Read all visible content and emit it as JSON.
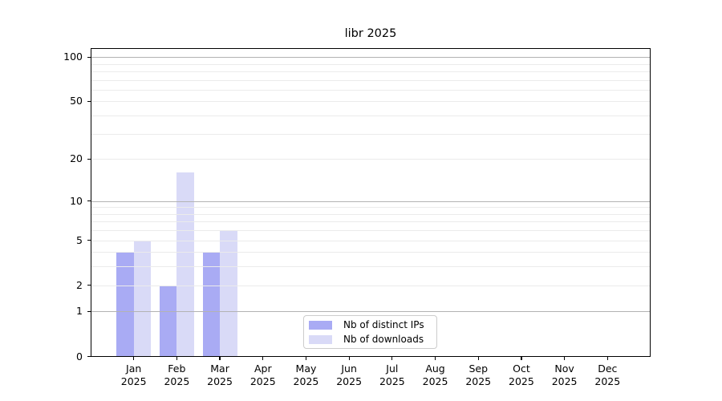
{
  "chart_data": {
    "type": "bar",
    "title": "libr 2025",
    "x_tick_year": "2025",
    "categories": [
      "Jan",
      "Feb",
      "Mar",
      "Apr",
      "May",
      "Jun",
      "Jul",
      "Aug",
      "Sep",
      "Oct",
      "Nov",
      "Dec"
    ],
    "series": [
      {
        "name": "Nb of distinct IPs",
        "color": "#a9abf4",
        "values": [
          4,
          2,
          4,
          0,
          0,
          0,
          0,
          0,
          0,
          0,
          0,
          0
        ]
      },
      {
        "name": "Nb of downloads",
        "color": "#d9daf7",
        "values": [
          5,
          16,
          6,
          0,
          0,
          0,
          0,
          0,
          0,
          0,
          0,
          0
        ]
      }
    ],
    "yscale": "log1p",
    "ylim": [
      0,
      115
    ],
    "y_ticks": [
      0,
      1,
      2,
      5,
      10,
      20,
      50,
      100
    ],
    "y_major_gridlines": [
      1,
      10,
      100
    ],
    "y_minor_gridlines": [
      2,
      3,
      4,
      5,
      6,
      7,
      8,
      9,
      20,
      30,
      40,
      50,
      60,
      70,
      80,
      90
    ],
    "grid": "horizontal",
    "legend_position": "lower center",
    "colors": {
      "major_grid": "#b3b3b3",
      "minor_grid": "#ebebeb",
      "spine": "#000000",
      "text": "#000000",
      "background": "#ffffff"
    }
  }
}
